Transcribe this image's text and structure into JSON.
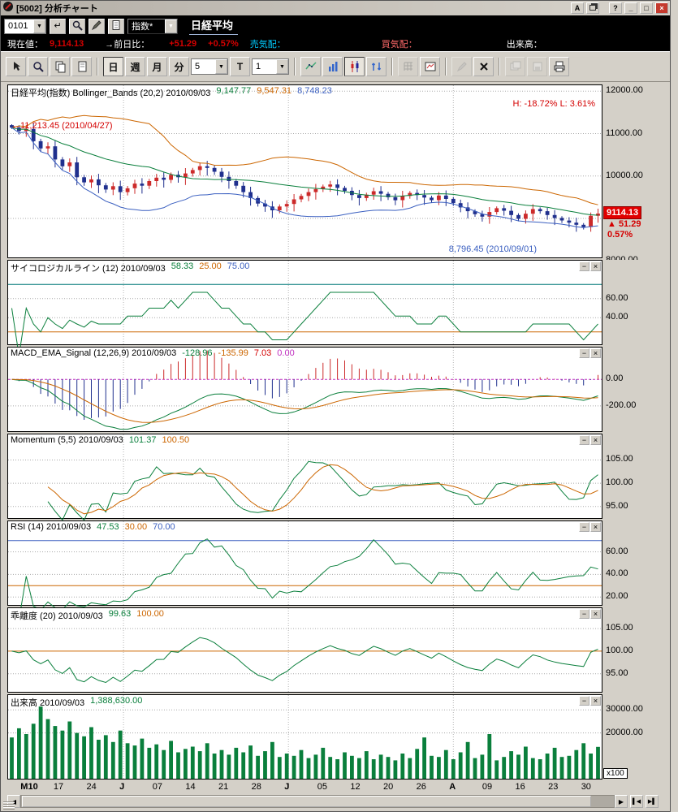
{
  "window": {
    "title": "[5002] 分析チャート",
    "buttons": {
      "a": "A",
      "help": "?",
      "minimize": "_",
      "maximize": "□",
      "close": "×"
    }
  },
  "nav": {
    "screen_code": "0101",
    "category": "指数*",
    "symbol": "日経平均"
  },
  "quote": {
    "current_label": "現在値：",
    "current_value": "9,114.13",
    "change_label": "→前日比：",
    "change_value": "+51.29",
    "change_pct": "+0.57%",
    "ask_label": "売気配：",
    "bid_label": "買気配：",
    "volume_label": "出来高："
  },
  "toolbar": {
    "day": "日",
    "week": "週",
    "month": "月",
    "minute": "分",
    "bars": "5",
    "tick": "T",
    "interval": "1"
  },
  "icons": {
    "enter": "↵",
    "down": "▼",
    "min": "−",
    "close": "×",
    "left": "◀",
    "right": "▶",
    "jump_left": "▌◀",
    "jump_right": "▶▌"
  },
  "panels": {
    "main": {
      "label": "日経平均(指数) Bollinger_Bands (20,2) 2010/09/03",
      "v1": "9,147.77",
      "v2": "9,547.31",
      "v3": "8,748.23",
      "hl": "H: -18.72%  L: 3.61%",
      "high_note": "←11,213.45 (2010/04/27)",
      "low_note": "8,796.45 (2010/09/01)",
      "price_tag": "9114.13",
      "price_change": "▲ 51.29",
      "price_pct": "0.57%"
    },
    "psych": {
      "label": "サイコロジカルライン (12) 2010/09/03",
      "v1": "58.33",
      "v2": "25.00",
      "v3": "75.00"
    },
    "macd": {
      "label": "MACD_EMA_Signal (12,26,9) 2010/09/03",
      "v1": "-128.96",
      "v2": "-135.99",
      "v3": "7.03",
      "v4": "0.00"
    },
    "momentum": {
      "label": "Momentum (5,5) 2010/09/03",
      "v1": "101.37",
      "v2": "100.50"
    },
    "rsi": {
      "label": "RSI (14) 2010/09/03",
      "v1": "47.53",
      "v2": "30.00",
      "v3": "70.00"
    },
    "kairi": {
      "label": "乖離度 (20) 2010/09/03",
      "v1": "99.63",
      "v2": "100.00"
    },
    "volume": {
      "label": "出来高 2010/09/03",
      "v1": "1,388,630.00",
      "unit": "x100"
    }
  },
  "colors": {
    "up": "#cc2a2a",
    "down": "#20308e",
    "green": "#0a7f3c",
    "orange": "#cc6600",
    "blue": "#3a5fc0",
    "teal": "#007878",
    "magenta": "#c030c0",
    "red": "#e00000",
    "redtxt": "#d40000",
    "cyan": "#00ccff"
  },
  "chart_data": {
    "type": "candlestick",
    "title": "日経平均(指数) Bollinger_Bands (20,2)",
    "x_labels": [
      {
        "t": "M10",
        "bold": true
      },
      {
        "t": "17"
      },
      {
        "t": "24"
      },
      {
        "t": "J",
        "bold": true
      },
      {
        "t": "07"
      },
      {
        "t": "14"
      },
      {
        "t": "21"
      },
      {
        "t": "28"
      },
      {
        "t": "J",
        "bold": true
      },
      {
        "t": "05"
      },
      {
        "t": "12"
      },
      {
        "t": "20"
      },
      {
        "t": "26"
      },
      {
        "t": "A",
        "bold": true
      },
      {
        "t": "09"
      },
      {
        "t": "16"
      },
      {
        "t": "23"
      },
      {
        "t": "30"
      }
    ],
    "month_lines": [
      3,
      8,
      13
    ],
    "price": {
      "open0": 11200,
      "close": [
        11140,
        11060,
        11110,
        10820,
        10650,
        10700,
        10390,
        10230,
        10320,
        9970,
        9850,
        9920,
        9780,
        9680,
        9760,
        9620,
        9710,
        9820,
        9770,
        9880,
        9960,
        9910,
        10030,
        9970,
        10060,
        10140,
        10230,
        10190,
        10100,
        9980,
        9880,
        9770,
        9620,
        9480,
        9350,
        9280,
        9190,
        9280,
        9340,
        9450,
        9530,
        9620,
        9690,
        9750,
        9800,
        9720,
        9650,
        9550,
        9480,
        9560,
        9640,
        9580,
        9500,
        9430,
        9530,
        9600,
        9550,
        9490,
        9430,
        9540,
        9460,
        9360,
        9260,
        9170,
        9100,
        9040,
        9150,
        9240,
        9180,
        9080,
        8990,
        9110,
        9220,
        9170,
        9080,
        9010,
        8950,
        8900,
        8850,
        8796,
        9063,
        9114
      ]
    },
    "volume_x100": [
      18000,
      22000,
      19500,
      24000,
      31500,
      26000,
      23000,
      21000,
      25000,
      20000,
      18500,
      22500,
      17000,
      19000,
      16000,
      21000,
      15500,
      14500,
      17500,
      13500,
      15000,
      12500,
      16500,
      11500,
      13000,
      14000,
      12000,
      15500,
      11000,
      12500,
      10500,
      13500,
      11500,
      14500,
      10000,
      12000,
      16000,
      9500,
      11000,
      10000,
      12500,
      9000,
      10500,
      13500,
      9500,
      8500,
      11500,
      10000,
      9000,
      12000,
      8500,
      10500,
      9500,
      8000,
      11000,
      9000,
      13000,
      18000,
      10000,
      9500,
      12500,
      8500,
      11500,
      16000,
      9000,
      10500,
      19500,
      8000,
      9500,
      12000,
      10500,
      14000,
      9000,
      8500,
      11000,
      13500,
      9500,
      10000,
      12500,
      15500,
      11000,
      13886
    ],
    "indicators": {
      "bollinger": {
        "n": 20,
        "k": 2
      },
      "psych_n": 12,
      "macd": [
        12,
        26,
        9
      ],
      "momentum": [
        5,
        5
      ],
      "rsi_n": 14,
      "kairi_n": 20
    },
    "axes": {
      "main": {
        "ylim": [
          8080,
          12140
        ],
        "last_price": 9114.13,
        "ticks": [
          {
            "v": 12000,
            "t": "12000.00"
          },
          {
            "v": 11000,
            "t": "11000.00"
          },
          {
            "v": 10000,
            "t": "10000.00"
          },
          {
            "v": 8000,
            "t": "8000.00"
          }
        ],
        "grid": [
          12000,
          11000,
          10000,
          9000
        ]
      },
      "psych": {
        "ylim": [
          12,
          100
        ],
        "ticks": [
          {
            "v": 60,
            "t": "60.00"
          },
          {
            "v": 40,
            "t": "40.00"
          }
        ],
        "grid": [
          60,
          40
        ],
        "hlines": [
          {
            "v": 75,
            "color": "teal"
          },
          {
            "v": 25,
            "color": "orange"
          }
        ]
      },
      "macd": {
        "ylim": [
          -390,
          240
        ],
        "ticks": [
          {
            "v": 0,
            "t": "0.00"
          },
          {
            "v": -200,
            "t": "-200.00"
          }
        ],
        "grid": [
          -200
        ],
        "hlines": [
          {
            "v": 0,
            "color": "magenta",
            "dash": true
          }
        ]
      },
      "momentum": {
        "ylim": [
          92.5,
          110.5
        ],
        "ticks": [
          {
            "v": 105,
            "t": "105.00"
          },
          {
            "v": 100,
            "t": "100.00"
          },
          {
            "v": 95,
            "t": "95.00"
          }
        ],
        "grid": [
          105,
          100,
          95
        ]
      },
      "rsi": {
        "ylim": [
          13,
          87
        ],
        "ticks": [
          {
            "v": 60,
            "t": "60.00"
          },
          {
            "v": 40,
            "t": "40.00"
          },
          {
            "v": 20,
            "t": "20.00"
          }
        ],
        "grid": [
          60,
          40,
          20
        ],
        "hlines": [
          {
            "v": 70,
            "color": "blue"
          },
          {
            "v": 30,
            "color": "orange"
          }
        ]
      },
      "kairi": {
        "ylim": [
          91,
          109.5
        ],
        "ticks": [
          {
            "v": 105,
            "t": "105.00"
          },
          {
            "v": 100,
            "t": "100.00"
          },
          {
            "v": 95,
            "t": "95.00"
          }
        ],
        "grid": [
          105,
          95
        ],
        "hlines": [
          {
            "v": 100,
            "color": "orange"
          }
        ]
      },
      "volume": {
        "ylim": [
          0,
          36500
        ],
        "ticks": [
          {
            "v": 30000,
            "t": "30000.00"
          },
          {
            "v": 20000,
            "t": "20000.00"
          }
        ],
        "grid": [
          30000,
          20000
        ]
      }
    }
  }
}
